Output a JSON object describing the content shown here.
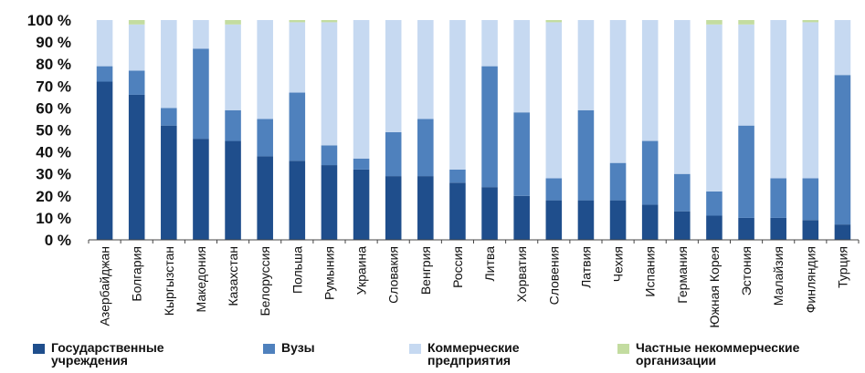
{
  "chart_data": {
    "type": "bar",
    "stacked": true,
    "categories": [
      "Азербайджан",
      "Болгария",
      "Кыргызстан",
      "Македония",
      "Казахстан",
      "Белоруссия",
      "Польша",
      "Румыния",
      "Украина",
      "Словакия",
      "Венгрия",
      "Россия",
      "Литва",
      "Хорватия",
      "Словения",
      "Латвия",
      "Чехия",
      "Испания",
      "Германия",
      "Южная Корея",
      "Эстония",
      "Малайзия",
      "Финляндия",
      "Турция"
    ],
    "series": [
      {
        "name": "Государственные учреждения",
        "color": "#1f4e8c",
        "values": [
          72,
          66,
          52,
          46,
          45,
          38,
          36,
          34,
          32,
          29,
          29,
          26,
          24,
          20,
          18,
          18,
          18,
          16,
          13,
          11,
          10,
          10,
          9,
          7
        ]
      },
      {
        "name": "Вузы",
        "color": "#4f81bd",
        "values": [
          7,
          11,
          8,
          41,
          14,
          17,
          31,
          9,
          5,
          20,
          26,
          6,
          55,
          38,
          10,
          41,
          17,
          29,
          17,
          11,
          42,
          18,
          19,
          68
        ]
      },
      {
        "name": "Коммерческие предприятия",
        "color": "#c6d9f1",
        "values": [
          21,
          21,
          40,
          13,
          39,
          45,
          32,
          56,
          63,
          51,
          45,
          68,
          21,
          42,
          71,
          41,
          65,
          55,
          70,
          76,
          46,
          72,
          71,
          25
        ]
      },
      {
        "name": "Частные некоммерческие организации",
        "color": "#c3dca0",
        "values": [
          0,
          2,
          0,
          0,
          2,
          0,
          1,
          1,
          0,
          0,
          0,
          0,
          0,
          0,
          1,
          0,
          0,
          0,
          0,
          2,
          2,
          0,
          1,
          0
        ]
      }
    ],
    "ylim": [
      0,
      100
    ],
    "yticks": [
      "0 %",
      "10 %",
      "20 %",
      "30 %",
      "40 %",
      "50 %",
      "60 %",
      "70 %",
      "80 %",
      "90 %",
      "100 %"
    ],
    "xlabel": "",
    "ylabel": "",
    "grid": false,
    "legend_position": "bottom"
  }
}
